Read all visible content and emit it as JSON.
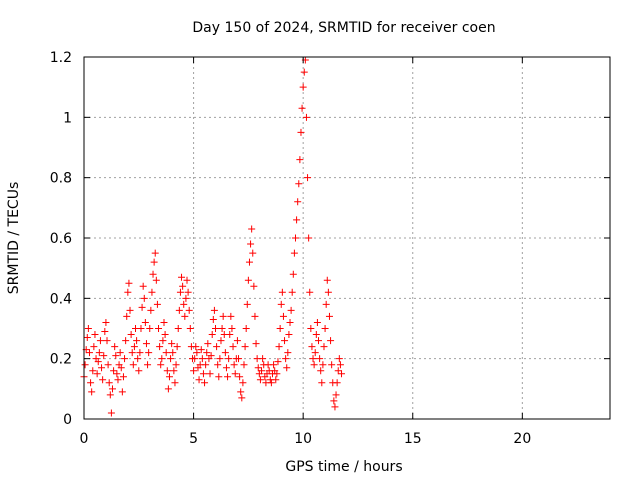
{
  "chart_data": {
    "type": "scatter",
    "title": "Day 150 of 2024, SRMTID for receiver coen",
    "xlabel": "GPS time / hours",
    "ylabel": "SRMTID / TECUs",
    "xlim": [
      0,
      24
    ],
    "ylim": [
      0,
      1.2
    ],
    "xticks": [
      0,
      5,
      10,
      15,
      20
    ],
    "xtick_labels": [
      "0",
      "5",
      "10",
      "15",
      "20"
    ],
    "yticks": [
      0,
      0.2,
      0.4,
      0.6,
      0.8,
      1.0,
      1.2
    ],
    "ytick_labels": [
      "0",
      "0.2",
      "0.4",
      "0.6",
      "0.8",
      "1",
      "1.2"
    ],
    "grid": true,
    "marker": "+",
    "color": "#ff0000",
    "series": [
      {
        "name": "SRMTID",
        "points": [
          [
            0.0,
            0.14
          ],
          [
            0.05,
            0.18
          ],
          [
            0.1,
            0.23
          ],
          [
            0.15,
            0.27
          ],
          [
            0.2,
            0.3
          ],
          [
            0.25,
            0.22
          ],
          [
            0.3,
            0.12
          ],
          [
            0.35,
            0.09
          ],
          [
            0.4,
            0.16
          ],
          [
            0.45,
            0.24
          ],
          [
            0.5,
            0.28
          ],
          [
            0.55,
            0.2
          ],
          [
            0.6,
            0.15
          ],
          [
            0.65,
            0.19
          ],
          [
            0.7,
            0.22
          ],
          [
            0.75,
            0.26
          ],
          [
            0.8,
            0.17
          ],
          [
            0.85,
            0.13
          ],
          [
            0.9,
            0.21
          ],
          [
            0.95,
            0.29
          ],
          [
            1.0,
            0.32
          ],
          [
            1.05,
            0.26
          ],
          [
            1.1,
            0.18
          ],
          [
            1.15,
            0.12
          ],
          [
            1.2,
            0.08
          ],
          [
            1.25,
            0.02
          ],
          [
            1.3,
            0.1
          ],
          [
            1.35,
            0.16
          ],
          [
            1.4,
            0.24
          ],
          [
            1.45,
            0.21
          ],
          [
            1.5,
            0.15
          ],
          [
            1.55,
            0.13
          ],
          [
            1.6,
            0.18
          ],
          [
            1.65,
            0.22
          ],
          [
            1.7,
            0.17
          ],
          [
            1.75,
            0.09
          ],
          [
            1.8,
            0.14
          ],
          [
            1.85,
            0.2
          ],
          [
            1.9,
            0.26
          ],
          [
            1.95,
            0.34
          ],
          [
            2.0,
            0.42
          ],
          [
            2.05,
            0.45
          ],
          [
            2.1,
            0.36
          ],
          [
            2.15,
            0.28
          ],
          [
            2.2,
            0.22
          ],
          [
            2.25,
            0.18
          ],
          [
            2.3,
            0.24
          ],
          [
            2.35,
            0.3
          ],
          [
            2.4,
            0.26
          ],
          [
            2.45,
            0.2
          ],
          [
            2.5,
            0.16
          ],
          [
            2.55,
            0.22
          ],
          [
            2.6,
            0.3
          ],
          [
            2.65,
            0.37
          ],
          [
            2.7,
            0.44
          ],
          [
            2.75,
            0.4
          ],
          [
            2.8,
            0.32
          ],
          [
            2.85,
            0.25
          ],
          [
            2.9,
            0.18
          ],
          [
            2.95,
            0.22
          ],
          [
            3.0,
            0.3
          ],
          [
            3.05,
            0.36
          ],
          [
            3.1,
            0.42
          ],
          [
            3.15,
            0.48
          ],
          [
            3.2,
            0.52
          ],
          [
            3.25,
            0.55
          ],
          [
            3.3,
            0.46
          ],
          [
            3.35,
            0.38
          ],
          [
            3.4,
            0.3
          ],
          [
            3.45,
            0.24
          ],
          [
            3.5,
            0.18
          ],
          [
            3.55,
            0.2
          ],
          [
            3.6,
            0.26
          ],
          [
            3.65,
            0.32
          ],
          [
            3.7,
            0.28
          ],
          [
            3.75,
            0.22
          ],
          [
            3.8,
            0.16
          ],
          [
            3.85,
            0.1
          ],
          [
            3.9,
            0.14
          ],
          [
            3.95,
            0.2
          ],
          [
            4.0,
            0.25
          ],
          [
            4.05,
            0.22
          ],
          [
            4.1,
            0.16
          ],
          [
            4.15,
            0.12
          ],
          [
            4.2,
            0.18
          ],
          [
            4.25,
            0.24
          ],
          [
            4.3,
            0.3
          ],
          [
            4.35,
            0.36
          ],
          [
            4.4,
            0.42
          ],
          [
            4.45,
            0.47
          ],
          [
            4.5,
            0.44
          ],
          [
            4.55,
            0.38
          ],
          [
            4.6,
            0.34
          ],
          [
            4.65,
            0.4
          ],
          [
            4.7,
            0.46
          ],
          [
            4.75,
            0.42
          ],
          [
            4.8,
            0.36
          ],
          [
            4.85,
            0.3
          ],
          [
            4.9,
            0.24
          ],
          [
            4.95,
            0.2
          ],
          [
            5.0,
            0.16
          ],
          [
            5.05,
            0.2
          ],
          [
            5.1,
            0.24
          ],
          [
            5.15,
            0.22
          ],
          [
            5.2,
            0.17
          ],
          [
            5.25,
            0.13
          ],
          [
            5.3,
            0.18
          ],
          [
            5.35,
            0.23
          ],
          [
            5.4,
            0.2
          ],
          [
            5.45,
            0.15
          ],
          [
            5.5,
            0.12
          ],
          [
            5.55,
            0.18
          ],
          [
            5.6,
            0.22
          ],
          [
            5.65,
            0.25
          ],
          [
            5.7,
            0.2
          ],
          [
            5.75,
            0.15
          ],
          [
            5.8,
            0.21
          ],
          [
            5.85,
            0.28
          ],
          [
            5.9,
            0.33
          ],
          [
            5.95,
            0.36
          ],
          [
            6.0,
            0.3
          ],
          [
            6.05,
            0.24
          ],
          [
            6.1,
            0.18
          ],
          [
            6.15,
            0.14
          ],
          [
            6.2,
            0.2
          ],
          [
            6.25,
            0.26
          ],
          [
            6.3,
            0.3
          ],
          [
            6.35,
            0.34
          ],
          [
            6.4,
            0.28
          ],
          [
            6.45,
            0.22
          ],
          [
            6.5,
            0.17
          ],
          [
            6.55,
            0.14
          ],
          [
            6.6,
            0.2
          ],
          [
            6.65,
            0.28
          ],
          [
            6.7,
            0.34
          ],
          [
            6.75,
            0.3
          ],
          [
            6.8,
            0.24
          ],
          [
            6.85,
            0.18
          ],
          [
            6.9,
            0.15
          ],
          [
            6.95,
            0.2
          ],
          [
            7.0,
            0.26
          ],
          [
            7.05,
            0.2
          ],
          [
            7.1,
            0.14
          ],
          [
            7.15,
            0.09
          ],
          [
            7.2,
            0.07
          ],
          [
            7.25,
            0.12
          ],
          [
            7.3,
            0.18
          ],
          [
            7.35,
            0.24
          ],
          [
            7.4,
            0.3
          ],
          [
            7.45,
            0.38
          ],
          [
            7.5,
            0.46
          ],
          [
            7.55,
            0.52
          ],
          [
            7.6,
            0.58
          ],
          [
            7.65,
            0.63
          ],
          [
            7.7,
            0.55
          ],
          [
            7.75,
            0.44
          ],
          [
            7.8,
            0.34
          ],
          [
            7.85,
            0.25
          ],
          [
            7.9,
            0.2
          ],
          [
            7.95,
            0.17
          ],
          [
            8.0,
            0.15
          ],
          [
            8.05,
            0.13
          ],
          [
            8.1,
            0.16
          ],
          [
            8.15,
            0.2
          ],
          [
            8.2,
            0.18
          ],
          [
            8.25,
            0.14
          ],
          [
            8.3,
            0.12
          ],
          [
            8.35,
            0.15
          ],
          [
            8.4,
            0.18
          ],
          [
            8.45,
            0.16
          ],
          [
            8.5,
            0.13
          ],
          [
            8.55,
            0.12
          ],
          [
            8.6,
            0.15
          ],
          [
            8.65,
            0.18
          ],
          [
            8.7,
            0.16
          ],
          [
            8.75,
            0.13
          ],
          [
            8.8,
            0.15
          ],
          [
            8.85,
            0.19
          ],
          [
            8.9,
            0.24
          ],
          [
            8.95,
            0.3
          ],
          [
            9.0,
            0.38
          ],
          [
            9.05,
            0.42
          ],
          [
            9.1,
            0.34
          ],
          [
            9.15,
            0.26
          ],
          [
            9.2,
            0.2
          ],
          [
            9.25,
            0.17
          ],
          [
            9.3,
            0.22
          ],
          [
            9.35,
            0.28
          ],
          [
            9.4,
            0.32
          ],
          [
            9.45,
            0.36
          ],
          [
            9.5,
            0.42
          ],
          [
            9.55,
            0.48
          ],
          [
            9.6,
            0.55
          ],
          [
            9.65,
            0.6
          ],
          [
            9.7,
            0.66
          ],
          [
            9.75,
            0.72
          ],
          [
            9.8,
            0.78
          ],
          [
            9.85,
            0.86
          ],
          [
            9.9,
            0.95
          ],
          [
            9.95,
            1.03
          ],
          [
            10.0,
            1.1
          ],
          [
            10.05,
            1.15
          ],
          [
            10.1,
            1.19
          ],
          [
            10.15,
            1.0
          ],
          [
            10.2,
            0.8
          ],
          [
            10.25,
            0.6
          ],
          [
            10.3,
            0.42
          ],
          [
            10.35,
            0.3
          ],
          [
            10.4,
            0.24
          ],
          [
            10.45,
            0.2
          ],
          [
            10.5,
            0.18
          ],
          [
            10.55,
            0.22
          ],
          [
            10.6,
            0.28
          ],
          [
            10.65,
            0.32
          ],
          [
            10.7,
            0.26
          ],
          [
            10.75,
            0.2
          ],
          [
            10.8,
            0.16
          ],
          [
            10.85,
            0.12
          ],
          [
            10.9,
            0.18
          ],
          [
            10.95,
            0.24
          ],
          [
            11.0,
            0.3
          ],
          [
            11.05,
            0.38
          ],
          [
            11.1,
            0.46
          ],
          [
            11.15,
            0.42
          ],
          [
            11.2,
            0.34
          ],
          [
            11.25,
            0.26
          ],
          [
            11.3,
            0.18
          ],
          [
            11.35,
            0.12
          ],
          [
            11.4,
            0.06
          ],
          [
            11.45,
            0.04
          ],
          [
            11.5,
            0.08
          ],
          [
            11.55,
            0.12
          ],
          [
            11.6,
            0.16
          ],
          [
            11.65,
            0.2
          ],
          [
            11.7,
            0.18
          ],
          [
            11.75,
            0.15
          ]
        ]
      }
    ]
  }
}
